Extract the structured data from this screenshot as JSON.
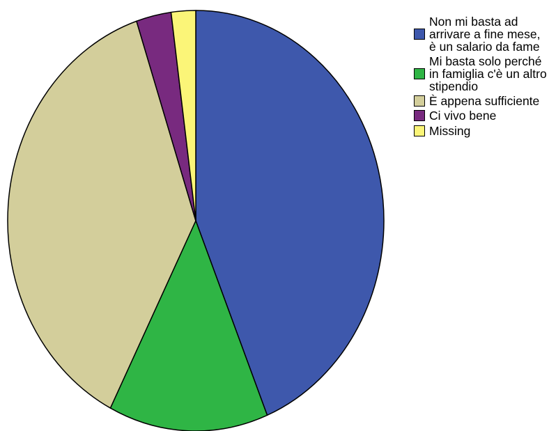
{
  "chart_data": {
    "type": "pie",
    "start_angle_deg": 0,
    "direction": "clockwise",
    "slices": [
      {
        "label": "Non mi basta ad arrivare a fine mese, è un salario da fame",
        "value": 43.8,
        "color": "#3e58ac"
      },
      {
        "label": "Mi basta solo perché in famiglia c'è un altro stipendio",
        "value": 13.7,
        "color": "#2fb545"
      },
      {
        "label": "È appena sufficiente",
        "value": 37.4,
        "color": "#d3ce9b"
      },
      {
        "label": "Ci vivo bene",
        "value": 3.0,
        "color": "#782a7f"
      },
      {
        "label": "Missing",
        "value": 2.1,
        "color": "#fbf578"
      }
    ]
  },
  "legend": {
    "placement": "top-right",
    "items": [
      {
        "label": "Non mi basta ad arrivare a fine mese, è un salario da fame",
        "color": "#3e58ac"
      },
      {
        "label": "Mi basta solo perché in famiglia c'è un altro stipendio",
        "color": "#2fb545"
      },
      {
        "label": "È appena sufficiente",
        "color": "#d3ce9b"
      },
      {
        "label": "Ci vivo bene",
        "color": "#782a7f"
      },
      {
        "label": "Missing",
        "color": "#fbf578"
      }
    ]
  }
}
